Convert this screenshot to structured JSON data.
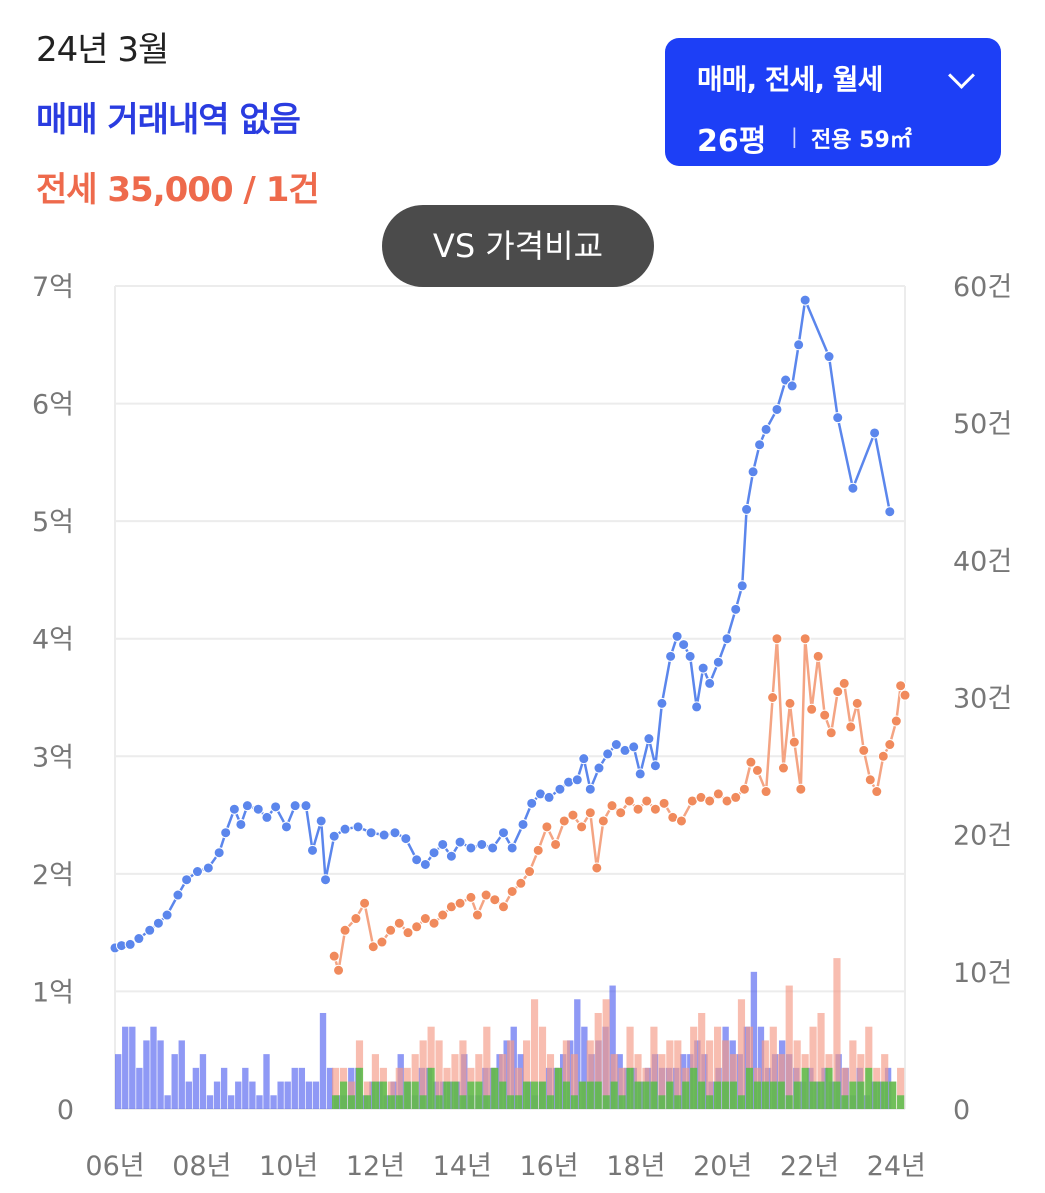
{
  "header": {
    "date": "24년 3월",
    "sale_status": "매매 거래내역 없음",
    "jeonse_summary": "전세 35,000 / 1건"
  },
  "filter": {
    "types": "매매, 전세, 월세",
    "size_pyeong": "26평",
    "area_label": "전용 59㎡"
  },
  "compare_button": {
    "label": "VS 가격비교"
  },
  "colors": {
    "sale": "#5b86ec",
    "sale_bar": "#4455ee",
    "jeonse": "#f08a5c",
    "jeonse_bar": "#f59a86",
    "monthly_bar": "#44c03e"
  },
  "chart_data": {
    "type": "line",
    "left_axis": {
      "ticks": [
        "0",
        "1억",
        "2억",
        "3억",
        "4억",
        "5억",
        "6억",
        "7억"
      ],
      "range": [
        0,
        7
      ]
    },
    "right_axis": {
      "ticks": [
        "0",
        "10건",
        "20건",
        "30건",
        "40건",
        "50건",
        "60건"
      ],
      "range": [
        0,
        60
      ]
    },
    "x_axis": {
      "ticks": [
        "06년",
        "08년",
        "10년",
        "12년",
        "14년",
        "16년",
        "18년",
        "20년",
        "22년",
        "24년"
      ],
      "range": [
        2006,
        2024.2
      ]
    },
    "grid": true,
    "series": [
      {
        "name": "매매",
        "points": [
          [
            2006.0,
            1.37
          ],
          [
            2006.15,
            1.39
          ],
          [
            2006.35,
            1.4
          ],
          [
            2006.55,
            1.45
          ],
          [
            2006.8,
            1.52
          ],
          [
            2007.0,
            1.58
          ],
          [
            2007.2,
            1.65
          ],
          [
            2007.45,
            1.82
          ],
          [
            2007.65,
            1.95
          ],
          [
            2007.9,
            2.02
          ],
          [
            2008.15,
            2.05
          ],
          [
            2008.4,
            2.18
          ],
          [
            2008.55,
            2.35
          ],
          [
            2008.75,
            2.55
          ],
          [
            2008.9,
            2.42
          ],
          [
            2009.05,
            2.58
          ],
          [
            2009.3,
            2.55
          ],
          [
            2009.5,
            2.48
          ],
          [
            2009.7,
            2.57
          ],
          [
            2009.95,
            2.4
          ],
          [
            2010.15,
            2.58
          ],
          [
            2010.4,
            2.58
          ],
          [
            2010.55,
            2.2
          ],
          [
            2010.75,
            2.45
          ],
          [
            2010.85,
            1.95
          ],
          [
            2011.05,
            2.32
          ],
          [
            2011.3,
            2.38
          ],
          [
            2011.6,
            2.4
          ],
          [
            2011.9,
            2.35
          ],
          [
            2012.2,
            2.33
          ],
          [
            2012.45,
            2.35
          ],
          [
            2012.7,
            2.3
          ],
          [
            2012.95,
            2.12
          ],
          [
            2013.15,
            2.08
          ],
          [
            2013.35,
            2.18
          ],
          [
            2013.55,
            2.25
          ],
          [
            2013.75,
            2.15
          ],
          [
            2013.95,
            2.27
          ],
          [
            2014.2,
            2.22
          ],
          [
            2014.45,
            2.25
          ],
          [
            2014.7,
            2.22
          ],
          [
            2014.95,
            2.35
          ],
          [
            2015.15,
            2.22
          ],
          [
            2015.4,
            2.42
          ],
          [
            2015.6,
            2.6
          ],
          [
            2015.8,
            2.68
          ],
          [
            2016.0,
            2.65
          ],
          [
            2016.25,
            2.72
          ],
          [
            2016.45,
            2.78
          ],
          [
            2016.65,
            2.8
          ],
          [
            2016.8,
            2.98
          ],
          [
            2016.95,
            2.72
          ],
          [
            2017.15,
            2.9
          ],
          [
            2017.35,
            3.02
          ],
          [
            2017.55,
            3.1
          ],
          [
            2017.75,
            3.05
          ],
          [
            2017.95,
            3.08
          ],
          [
            2018.1,
            2.85
          ],
          [
            2018.3,
            3.15
          ],
          [
            2018.45,
            2.92
          ],
          [
            2018.6,
            3.45
          ],
          [
            2018.8,
            3.85
          ],
          [
            2018.95,
            4.02
          ],
          [
            2019.1,
            3.95
          ],
          [
            2019.25,
            3.85
          ],
          [
            2019.4,
            3.42
          ],
          [
            2019.55,
            3.75
          ],
          [
            2019.7,
            3.62
          ],
          [
            2019.9,
            3.8
          ],
          [
            2020.1,
            4.0
          ],
          [
            2020.3,
            4.25
          ],
          [
            2020.45,
            4.45
          ],
          [
            2020.55,
            5.1
          ],
          [
            2020.7,
            5.42
          ],
          [
            2020.85,
            5.65
          ],
          [
            2021.0,
            5.78
          ],
          [
            2021.25,
            5.95
          ],
          [
            2021.45,
            6.2
          ],
          [
            2021.6,
            6.15
          ],
          [
            2021.75,
            6.5
          ],
          [
            2021.9,
            6.88
          ],
          [
            2022.45,
            6.4
          ],
          [
            2022.65,
            5.88
          ],
          [
            2023.0,
            5.28
          ],
          [
            2023.5,
            5.75
          ],
          [
            2023.85,
            5.08
          ]
        ]
      },
      {
        "name": "전세",
        "points": [
          [
            2011.05,
            1.3
          ],
          [
            2011.15,
            1.18
          ],
          [
            2011.3,
            1.52
          ],
          [
            2011.55,
            1.62
          ],
          [
            2011.75,
            1.75
          ],
          [
            2011.95,
            1.38
          ],
          [
            2012.15,
            1.42
          ],
          [
            2012.35,
            1.52
          ],
          [
            2012.55,
            1.58
          ],
          [
            2012.75,
            1.5
          ],
          [
            2012.95,
            1.55
          ],
          [
            2013.15,
            1.62
          ],
          [
            2013.35,
            1.58
          ],
          [
            2013.55,
            1.65
          ],
          [
            2013.75,
            1.72
          ],
          [
            2013.95,
            1.75
          ],
          [
            2014.2,
            1.8
          ],
          [
            2014.35,
            1.65
          ],
          [
            2014.55,
            1.82
          ],
          [
            2014.75,
            1.78
          ],
          [
            2014.95,
            1.72
          ],
          [
            2015.15,
            1.85
          ],
          [
            2015.35,
            1.92
          ],
          [
            2015.55,
            2.02
          ],
          [
            2015.75,
            2.2
          ],
          [
            2015.95,
            2.4
          ],
          [
            2016.15,
            2.25
          ],
          [
            2016.35,
            2.45
          ],
          [
            2016.55,
            2.5
          ],
          [
            2016.75,
            2.4
          ],
          [
            2016.95,
            2.52
          ],
          [
            2017.1,
            2.05
          ],
          [
            2017.25,
            2.45
          ],
          [
            2017.45,
            2.58
          ],
          [
            2017.65,
            2.52
          ],
          [
            2017.85,
            2.62
          ],
          [
            2018.05,
            2.55
          ],
          [
            2018.25,
            2.62
          ],
          [
            2018.45,
            2.55
          ],
          [
            2018.65,
            2.6
          ],
          [
            2018.85,
            2.48
          ],
          [
            2019.05,
            2.45
          ],
          [
            2019.3,
            2.62
          ],
          [
            2019.5,
            2.65
          ],
          [
            2019.7,
            2.62
          ],
          [
            2019.9,
            2.68
          ],
          [
            2020.1,
            2.62
          ],
          [
            2020.3,
            2.65
          ],
          [
            2020.5,
            2.72
          ],
          [
            2020.65,
            2.95
          ],
          [
            2020.8,
            2.88
          ],
          [
            2021.0,
            2.7
          ],
          [
            2021.15,
            3.5
          ],
          [
            2021.25,
            4.0
          ],
          [
            2021.4,
            2.9
          ],
          [
            2021.55,
            3.45
          ],
          [
            2021.65,
            3.12
          ],
          [
            2021.8,
            2.72
          ],
          [
            2021.9,
            4.0
          ],
          [
            2022.05,
            3.4
          ],
          [
            2022.2,
            3.85
          ],
          [
            2022.35,
            3.35
          ],
          [
            2022.5,
            3.2
          ],
          [
            2022.65,
            3.55
          ],
          [
            2022.8,
            3.62
          ],
          [
            2022.95,
            3.25
          ],
          [
            2023.1,
            3.45
          ],
          [
            2023.25,
            3.05
          ],
          [
            2023.4,
            2.8
          ],
          [
            2023.55,
            2.7
          ],
          [
            2023.7,
            3.0
          ],
          [
            2023.85,
            3.1
          ],
          [
            2024.0,
            3.3
          ],
          [
            2024.1,
            3.6
          ],
          [
            2024.2,
            3.52
          ]
        ]
      }
    ],
    "volume_series": [
      {
        "name": "매매 거래량",
        "counts": [
          4,
          6,
          6,
          3,
          5,
          6,
          5,
          1,
          4,
          5,
          2,
          3,
          4,
          1,
          2,
          3,
          1,
          2,
          3,
          2,
          1,
          4,
          1,
          2,
          2,
          3,
          3,
          2,
          2,
          7,
          3,
          1,
          1,
          3,
          3,
          1,
          2,
          2,
          1,
          2,
          4,
          2,
          1,
          3,
          3,
          2,
          2,
          2,
          2,
          4,
          1,
          1,
          3,
          3,
          4,
          5,
          6,
          4,
          2,
          1,
          2,
          3,
          3,
          4,
          5,
          8,
          6,
          4,
          5,
          6,
          9,
          4,
          3,
          3,
          2,
          3,
          4,
          3,
          3,
          3,
          4,
          4,
          5,
          4,
          2,
          3,
          6,
          5,
          4,
          6,
          10,
          6,
          3,
          4,
          5,
          4,
          3,
          2,
          3,
          2,
          3,
          2,
          4,
          3,
          1,
          3,
          1,
          2,
          2,
          3
        ]
      },
      {
        "name": "전세 거래량",
        "counts": [
          3,
          3,
          2,
          5,
          2,
          4,
          3,
          2,
          3,
          3,
          4,
          5,
          6,
          5,
          3,
          4,
          5,
          3,
          4,
          6,
          3,
          4,
          5,
          3,
          5,
          8,
          6,
          4,
          3,
          5,
          4,
          2,
          5,
          7,
          8,
          4,
          3,
          6,
          4,
          3,
          6,
          4,
          5,
          5,
          3,
          6,
          7,
          5,
          6,
          5,
          4,
          8,
          6,
          3,
          5,
          6,
          4,
          9,
          5,
          4,
          6,
          7,
          4,
          11,
          3,
          5,
          4,
          6,
          3,
          4,
          2,
          3
        ]
      },
      {
        "name": "월세 거래량",
        "counts": [
          1,
          2,
          1,
          3,
          1,
          2,
          2,
          1,
          1,
          2,
          2,
          1,
          3,
          1,
          2,
          2,
          1,
          2,
          2,
          1,
          3,
          2,
          1,
          1,
          2,
          2,
          2,
          1,
          3,
          2,
          1,
          2,
          2,
          2,
          1,
          2,
          1,
          3,
          2,
          2,
          2,
          1,
          2,
          1,
          2,
          3,
          2,
          1,
          2,
          2,
          2,
          1,
          3,
          2,
          2,
          2,
          2,
          1,
          2,
          3,
          2,
          2,
          3,
          2,
          1,
          2,
          2,
          3,
          2,
          2,
          2,
          1
        ]
      }
    ]
  }
}
